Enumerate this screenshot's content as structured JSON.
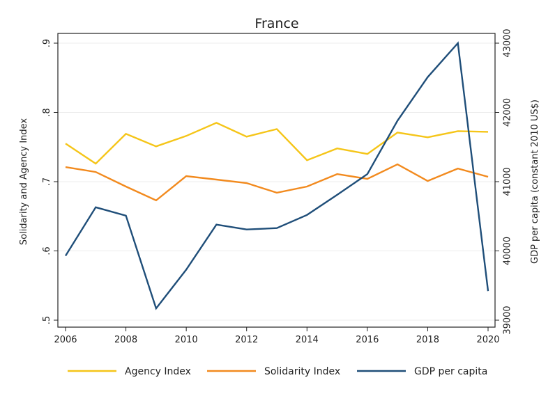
{
  "chart_data": {
    "type": "line",
    "title": "France",
    "x": [
      2006,
      2007,
      2008,
      2009,
      2010,
      2011,
      2012,
      2013,
      2014,
      2015,
      2016,
      2017,
      2018,
      2019,
      2020
    ],
    "x_ticks": [
      "2006",
      "2008",
      "2010",
      "2012",
      "2014",
      "2016",
      "2018",
      "2020"
    ],
    "xlim": [
      2006,
      2020
    ],
    "left_axis": {
      "label": "Solidarity and Agency Index",
      "ylim": [
        0.5,
        0.9
      ],
      "ticks": [
        ".5",
        ".6",
        ".7",
        ".8",
        ".9"
      ]
    },
    "right_axis": {
      "label": "GDP per capita (constant 2010 US$)",
      "ylim": [
        39000,
        43000
      ],
      "ticks": [
        "39000",
        "40000",
        "41000",
        "42000",
        "43000"
      ]
    },
    "series": [
      {
        "name": "Agency Index",
        "axis": "left",
        "color": "#f5c518",
        "values": [
          0.755,
          0.726,
          0.769,
          0.751,
          0.766,
          0.785,
          0.765,
          0.776,
          0.731,
          0.748,
          0.74,
          0.771,
          0.764,
          0.773,
          0.772
        ]
      },
      {
        "name": "Solidarity Index",
        "axis": "left",
        "color": "#f28a1e",
        "values": [
          0.721,
          0.714,
          0.693,
          0.673,
          0.708,
          0.703,
          0.698,
          0.684,
          0.693,
          0.711,
          0.704,
          0.725,
          0.701,
          0.719,
          0.707
        ]
      },
      {
        "name": "GDP per capita",
        "axis": "right",
        "color": "#1f4e79",
        "values": [
          39930,
          40630,
          40510,
          39170,
          39730,
          40380,
          40310,
          40330,
          40520,
          40810,
          41110,
          41880,
          42510,
          43000,
          39420
        ]
      }
    ],
    "grid": true,
    "legend": "bottom"
  }
}
